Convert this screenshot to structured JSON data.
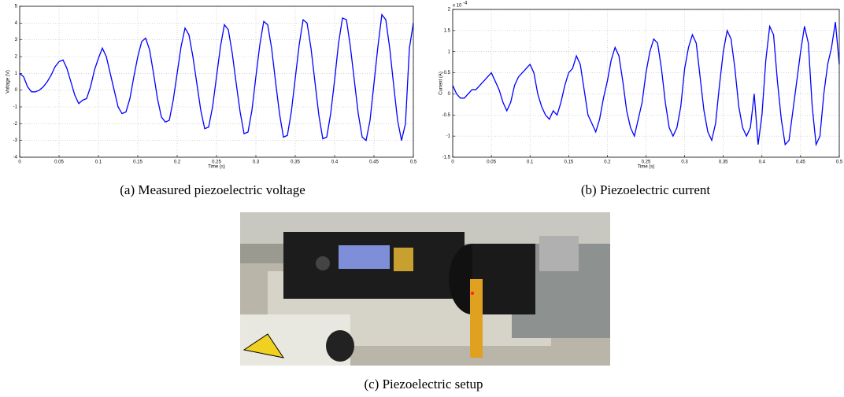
{
  "chart_data": [
    {
      "type": "line",
      "caption": "(a)  Measured piezoelectric voltage",
      "xlabel": "Time (s)",
      "ylabel": "Voltage (V)",
      "color": "#0000ff",
      "grid": true,
      "xlim": [
        0,
        0.5
      ],
      "xticks": [
        0,
        0.05,
        0.1,
        0.15,
        0.2,
        0.25,
        0.3,
        0.35,
        0.4,
        0.45,
        0.5
      ],
      "ylim": [
        -4,
        5
      ],
      "yticks": [
        -4,
        -3,
        -2,
        -1,
        0,
        1,
        2,
        3,
        4,
        5
      ],
      "x": [
        0,
        0.005,
        0.01,
        0.015,
        0.02,
        0.025,
        0.03,
        0.035,
        0.04,
        0.045,
        0.05,
        0.055,
        0.06,
        0.065,
        0.07,
        0.075,
        0.08,
        0.085,
        0.09,
        0.095,
        0.1,
        0.105,
        0.11,
        0.115,
        0.12,
        0.125,
        0.13,
        0.135,
        0.14,
        0.145,
        0.15,
        0.155,
        0.16,
        0.165,
        0.17,
        0.175,
        0.18,
        0.185,
        0.19,
        0.195,
        0.2,
        0.205,
        0.21,
        0.215,
        0.22,
        0.225,
        0.23,
        0.235,
        0.24,
        0.245,
        0.25,
        0.255,
        0.26,
        0.265,
        0.27,
        0.275,
        0.28,
        0.285,
        0.29,
        0.295,
        0.3,
        0.305,
        0.31,
        0.315,
        0.32,
        0.325,
        0.33,
        0.335,
        0.34,
        0.345,
        0.35,
        0.355,
        0.36,
        0.365,
        0.37,
        0.375,
        0.38,
        0.385,
        0.39,
        0.395,
        0.4,
        0.405,
        0.41,
        0.415,
        0.42,
        0.425,
        0.43,
        0.435,
        0.44,
        0.445,
        0.45,
        0.455,
        0.46,
        0.465,
        0.47,
        0.475,
        0.48,
        0.485,
        0.49,
        0.495,
        0.5
      ],
      "values": [
        1.0,
        0.8,
        0.2,
        -0.1,
        -0.1,
        0.0,
        0.2,
        0.5,
        0.9,
        1.4,
        1.7,
        1.8,
        1.3,
        0.5,
        -0.3,
        -0.8,
        -0.6,
        -0.5,
        0.2,
        1.2,
        1.9,
        2.5,
        2.0,
        1.0,
        0.0,
        -1.0,
        -1.4,
        -1.3,
        -0.5,
        0.8,
        2.0,
        2.9,
        3.1,
        2.4,
        1.0,
        -0.5,
        -1.6,
        -1.9,
        -1.8,
        -0.6,
        1.0,
        2.6,
        3.7,
        3.3,
        2.0,
        0.4,
        -1.2,
        -2.3,
        -2.2,
        -1.0,
        0.8,
        2.6,
        3.9,
        3.6,
        2.2,
        0.4,
        -1.3,
        -2.6,
        -2.5,
        -1.2,
        0.8,
        2.7,
        4.1,
        3.9,
        2.5,
        0.5,
        -1.4,
        -2.8,
        -2.7,
        -1.3,
        0.7,
        2.7,
        4.2,
        4.0,
        2.5,
        0.5,
        -1.5,
        -2.9,
        -2.8,
        -1.4,
        0.6,
        2.8,
        4.3,
        4.2,
        2.6,
        0.6,
        -1.4,
        -2.8,
        -3.0,
        -1.8,
        0.4,
        2.6,
        4.5,
        4.2,
        2.5,
        0.3,
        -1.8,
        -3.0,
        -2.0,
        2.5,
        4.0
      ]
    },
    {
      "type": "line",
      "caption": "(b)  Piezoelectric current",
      "xlabel": "Time (s)",
      "ylabel": "Current (A)",
      "color": "#0000ff",
      "grid": true,
      "y_multiplier": {
        "base": "x 10",
        "exponent": "-4"
      },
      "xlim": [
        0,
        0.5
      ],
      "xticks": [
        0,
        0.05,
        0.1,
        0.15,
        0.2,
        0.25,
        0.3,
        0.35,
        0.4,
        0.45,
        0.5
      ],
      "ylim": [
        -1.5,
        2
      ],
      "yticks": [
        -1.5,
        -1,
        -0.5,
        0,
        0.5,
        1,
        1.5,
        2
      ],
      "x": [
        0,
        0.005,
        0.01,
        0.015,
        0.02,
        0.025,
        0.03,
        0.035,
        0.04,
        0.045,
        0.05,
        0.055,
        0.06,
        0.065,
        0.07,
        0.075,
        0.08,
        0.085,
        0.09,
        0.095,
        0.1,
        0.105,
        0.11,
        0.115,
        0.12,
        0.125,
        0.13,
        0.135,
        0.14,
        0.145,
        0.15,
        0.155,
        0.16,
        0.165,
        0.17,
        0.175,
        0.18,
        0.185,
        0.19,
        0.195,
        0.2,
        0.205,
        0.21,
        0.215,
        0.22,
        0.225,
        0.23,
        0.235,
        0.24,
        0.245,
        0.25,
        0.255,
        0.26,
        0.265,
        0.27,
        0.275,
        0.28,
        0.285,
        0.29,
        0.295,
        0.3,
        0.305,
        0.31,
        0.315,
        0.32,
        0.325,
        0.33,
        0.335,
        0.34,
        0.345,
        0.35,
        0.355,
        0.36,
        0.365,
        0.37,
        0.375,
        0.38,
        0.385,
        0.39,
        0.395,
        0.4,
        0.405,
        0.41,
        0.415,
        0.42,
        0.425,
        0.43,
        0.435,
        0.44,
        0.445,
        0.45,
        0.455,
        0.46,
        0.465,
        0.47,
        0.475,
        0.48,
        0.485,
        0.49,
        0.495,
        0.5
      ],
      "values": [
        0.2,
        0.0,
        -0.1,
        -0.1,
        0.0,
        0.1,
        0.1,
        0.2,
        0.3,
        0.4,
        0.5,
        0.3,
        0.1,
        -0.2,
        -0.4,
        -0.2,
        0.2,
        0.4,
        0.5,
        0.6,
        0.7,
        0.5,
        0.0,
        -0.3,
        -0.5,
        -0.6,
        -0.4,
        -0.5,
        -0.2,
        0.2,
        0.5,
        0.6,
        0.9,
        0.7,
        0.1,
        -0.5,
        -0.7,
        -0.9,
        -0.6,
        -0.1,
        0.3,
        0.8,
        1.1,
        0.9,
        0.3,
        -0.4,
        -0.8,
        -1.0,
        -0.6,
        -0.2,
        0.5,
        1.0,
        1.3,
        1.2,
        0.6,
        -0.2,
        -0.8,
        -1.0,
        -0.8,
        -0.3,
        0.6,
        1.1,
        1.4,
        1.2,
        0.4,
        -0.4,
        -0.9,
        -1.1,
        -0.7,
        0.2,
        1.0,
        1.5,
        1.3,
        0.6,
        -0.3,
        -0.8,
        -1.0,
        -0.8,
        0.0,
        -1.2,
        -0.5,
        0.8,
        1.6,
        1.4,
        0.3,
        -0.6,
        -1.2,
        -1.1,
        -0.4,
        0.3,
        1.0,
        1.6,
        1.2,
        -0.3,
        -1.2,
        -1.0,
        0.0,
        0.7,
        1.1,
        1.7,
        0.7
      ]
    }
  ],
  "figure_c": {
    "caption": "(c)  Piezoelectric setup"
  }
}
